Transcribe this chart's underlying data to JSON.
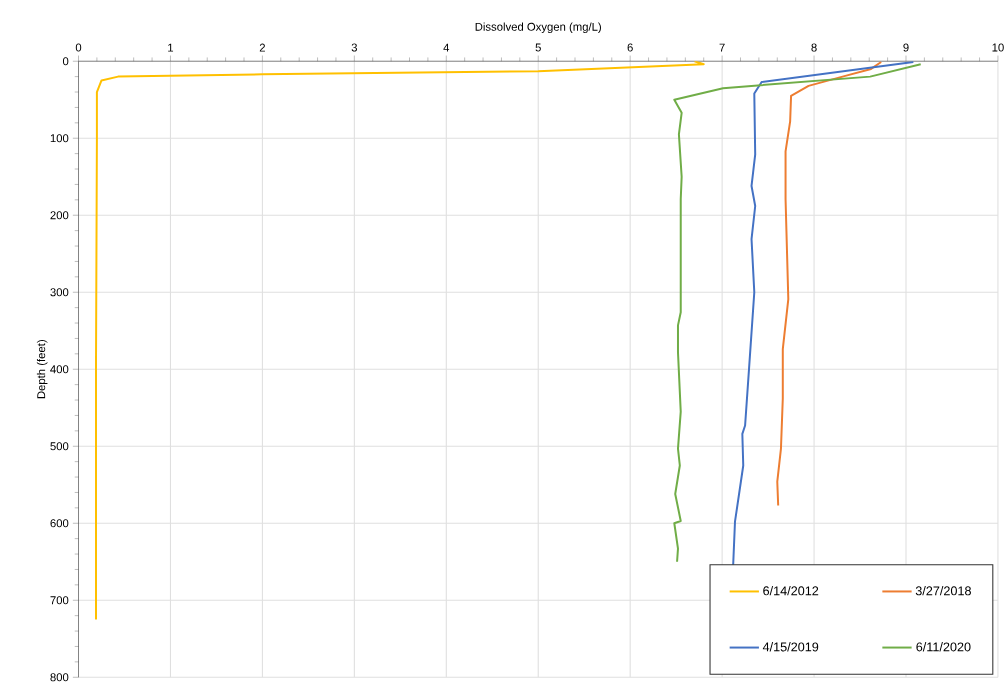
{
  "chart_data": {
    "type": "line",
    "xlabel": "Dissolved Oxygen (mg/L)",
    "ylabel": "Depth (feet)",
    "xlim": [
      0,
      10
    ],
    "xticks": [
      0,
      1,
      2,
      3,
      4,
      5,
      6,
      7,
      8,
      9,
      10
    ],
    "ylim": [
      800,
      0
    ],
    "yticks": [
      0,
      100,
      200,
      300,
      400,
      500,
      600,
      700,
      800
    ],
    "grid": true,
    "legend": "bottom right",
    "marker": "none",
    "line_style": "solid",
    "series": [
      {
        "name": "6/14/2012",
        "color": "#ffc000",
        "x": [
          6.7,
          6.8,
          5,
          2,
          0.43,
          0.25,
          0.2,
          0.2,
          0.19,
          0.19
        ],
        "values": [
          0,
          4,
          13,
          17,
          20,
          25,
          40,
          100,
          400,
          725
        ]
      },
      {
        "name": "3/27/2018",
        "color": "#ed7d31",
        "x": [
          8.73,
          8.62,
          8.34,
          7.94,
          7.75,
          7.74,
          7.69,
          7.69,
          7.72,
          7.66,
          7.66,
          7.64,
          7.6,
          7.61
        ],
        "values": [
          1,
          10,
          19,
          32,
          45,
          78,
          117,
          179,
          309,
          374,
          438,
          503,
          546,
          577
        ]
      },
      {
        "name": "4/15/2019",
        "color": "#4472c4",
        "x": [
          9.08,
          7.43,
          7.35,
          7.36,
          7.32,
          7.36,
          7.32,
          7.35,
          7.29,
          7.25,
          7.22,
          7.23,
          7.14,
          7.12
        ],
        "values": [
          1,
          27,
          42,
          121,
          162,
          188,
          231,
          300,
          404,
          473,
          484,
          525,
          598,
          655
        ]
      },
      {
        "name": "6/11/2020",
        "color": "#70ad47",
        "x": [
          9.16,
          8.61,
          7.01,
          6.48,
          6.56,
          6.53,
          6.56,
          6.55,
          6.55,
          6.52,
          6.52,
          6.55,
          6.52,
          6.54,
          6.49,
          6.55,
          6.48,
          6.52,
          6.51
        ],
        "values": [
          4,
          20,
          35,
          50,
          67,
          95,
          150,
          179,
          326,
          343,
          378,
          455,
          503,
          525,
          562,
          597,
          600,
          633,
          650
        ]
      }
    ]
  }
}
